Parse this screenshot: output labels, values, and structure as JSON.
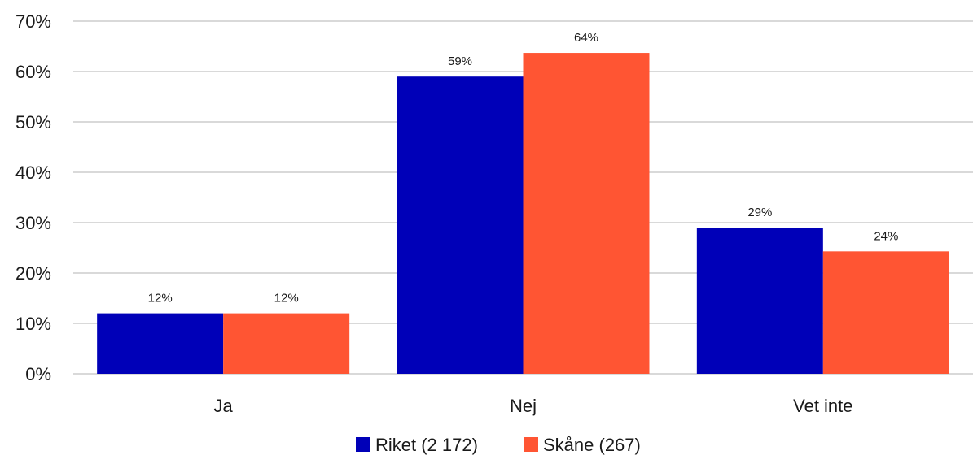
{
  "chart_data": {
    "type": "bar",
    "title": "",
    "xlabel": "",
    "ylabel": "",
    "categories": [
      "Ja",
      "Nej",
      "Vet inte"
    ],
    "series": [
      {
        "name": "Riket (2 172)",
        "color": "#0000B8",
        "values": [
          12,
          59,
          29
        ],
        "labels": [
          "12%",
          "59%",
          "29%"
        ]
      },
      {
        "name": "Skåne (267)",
        "color": "#FF5533",
        "values": [
          12,
          63.7,
          24.3
        ],
        "labels": [
          "12%",
          "64%",
          "24%"
        ]
      }
    ],
    "ylim": [
      0,
      70
    ],
    "yticks": [
      0,
      10,
      20,
      30,
      40,
      50,
      60,
      70
    ],
    "ytick_labels": [
      "0%",
      "10%",
      "20%",
      "30%",
      "40%",
      "50%",
      "60%",
      "70%"
    ],
    "grid": true,
    "gridline_color": "#D9D9D9",
    "legend_position": "bottom-center"
  }
}
